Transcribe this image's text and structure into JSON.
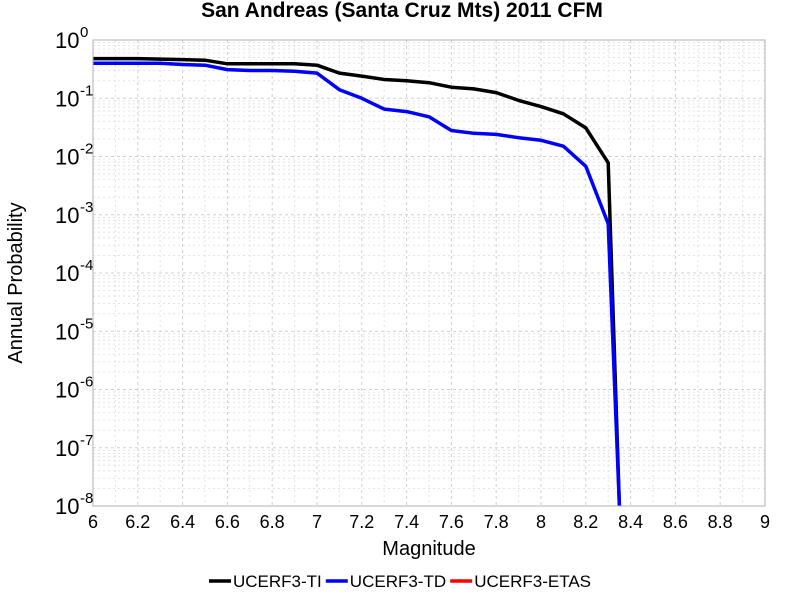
{
  "chart_data": {
    "type": "line",
    "title": "San Andreas (Santa Cruz Mts) 2011 CFM",
    "xlabel": "Magnitude",
    "ylabel": "Annual Probability",
    "xlim": [
      6,
      9
    ],
    "ylim": [
      1e-08,
      1
    ],
    "yscale": "log",
    "grid": true,
    "legend_position": "bottom",
    "x_ticks": [
      "6",
      "6.2",
      "6.4",
      "6.6",
      "6.8",
      "7",
      "7.2",
      "7.4",
      "7.6",
      "7.8",
      "8",
      "8.2",
      "8.4",
      "8.6",
      "8.8",
      "9"
    ],
    "y_ticks": [
      {
        "base": "10",
        "exp": "0"
      },
      {
        "base": "10",
        "exp": "-1"
      },
      {
        "base": "10",
        "exp": "-2"
      },
      {
        "base": "10",
        "exp": "-3"
      },
      {
        "base": "10",
        "exp": "-4"
      },
      {
        "base": "10",
        "exp": "-5"
      },
      {
        "base": "10",
        "exp": "-6"
      },
      {
        "base": "10",
        "exp": "-7"
      },
      {
        "base": "10",
        "exp": "-8"
      }
    ],
    "series": [
      {
        "name": "UCERF3-TI",
        "color": "#000000",
        "x": [
          6.0,
          6.1,
          6.2,
          6.3,
          6.4,
          6.5,
          6.6,
          6.7,
          6.8,
          6.9,
          7.0,
          7.1,
          7.2,
          7.3,
          7.4,
          7.5,
          7.6,
          7.7,
          7.8,
          7.9,
          8.0,
          8.1,
          8.2,
          8.3,
          8.35
        ],
        "y": [
          0.48,
          0.48,
          0.48,
          0.47,
          0.46,
          0.45,
          0.39,
          0.39,
          0.39,
          0.39,
          0.37,
          0.27,
          0.24,
          0.21,
          0.2,
          0.185,
          0.155,
          0.145,
          0.125,
          0.092,
          0.072,
          0.054,
          0.031,
          0.0078,
          1e-08
        ]
      },
      {
        "name": "UCERF3-TD",
        "color": "#0000ff",
        "x": [
          6.0,
          6.1,
          6.2,
          6.3,
          6.4,
          6.5,
          6.6,
          6.7,
          6.8,
          6.9,
          7.0,
          7.1,
          7.2,
          7.3,
          7.4,
          7.5,
          7.6,
          7.7,
          7.8,
          7.9,
          8.0,
          8.1,
          8.2,
          8.3,
          8.35
        ],
        "y": [
          0.4,
          0.4,
          0.4,
          0.4,
          0.38,
          0.37,
          0.31,
          0.3,
          0.3,
          0.29,
          0.27,
          0.14,
          0.1,
          0.065,
          0.059,
          0.048,
          0.028,
          0.025,
          0.024,
          0.021,
          0.019,
          0.015,
          0.0068,
          0.0007,
          1e-08
        ]
      },
      {
        "name": "UCERF3-ETAS",
        "color": "#ff0000",
        "x": [],
        "y": []
      }
    ]
  }
}
